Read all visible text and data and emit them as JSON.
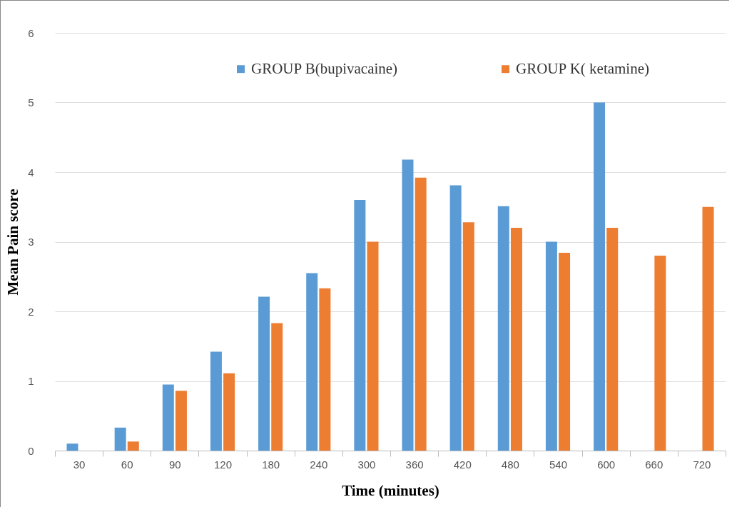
{
  "chart_data": {
    "type": "bar",
    "xlabel": "Time (minutes)",
    "ylabel": "Mean Pain score",
    "categories": [
      "30",
      "60",
      "90",
      "120",
      "180",
      "240",
      "300",
      "360",
      "420",
      "480",
      "540",
      "600",
      "660",
      "720"
    ],
    "series": [
      {
        "name": "GROUP B(bupivacaine)",
        "color": "#5b9bd5",
        "values": [
          0.1,
          0.33,
          0.95,
          1.42,
          2.21,
          2.55,
          3.6,
          4.18,
          3.81,
          3.51,
          3.0,
          5.0,
          null,
          null
        ]
      },
      {
        "name": "GROUP K( ketamine)",
        "color": "#ed7d31",
        "values": [
          null,
          0.13,
          0.86,
          1.11,
          1.83,
          2.33,
          3.0,
          3.92,
          3.28,
          3.2,
          2.84,
          3.2,
          2.8,
          3.5
        ]
      }
    ],
    "ylim": [
      0,
      6
    ],
    "yticks": [
      0,
      1,
      2,
      3,
      4,
      5,
      6
    ],
    "grid": "y",
    "legend": "top"
  }
}
